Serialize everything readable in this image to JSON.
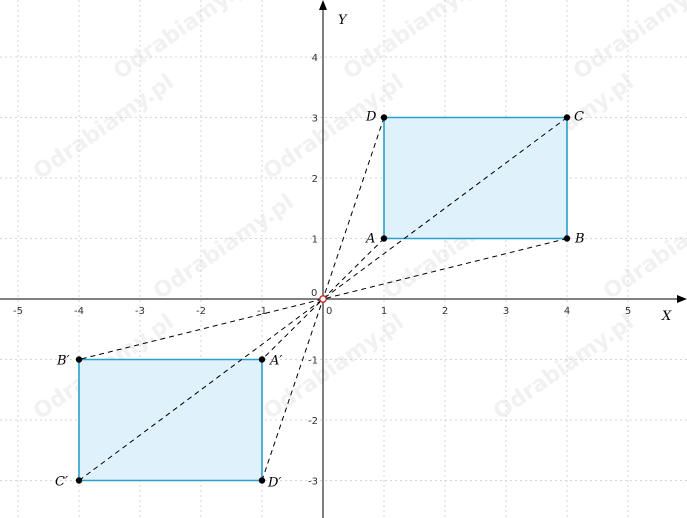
{
  "axes": {
    "x_label": "X",
    "y_label": "Y",
    "x_ticks": [
      "-5",
      "-4",
      "-3",
      "-2",
      "-1",
      "0",
      "1",
      "2",
      "3",
      "4",
      "5"
    ],
    "y_ticks": [
      "-3",
      "-2",
      "-1",
      "1",
      "2",
      "3",
      "4"
    ],
    "origin_label": "0"
  },
  "points": [
    {
      "name": "A",
      "label": "A",
      "x": 1,
      "y": 1
    },
    {
      "name": "B",
      "label": "B",
      "x": 4,
      "y": 1
    },
    {
      "name": "C",
      "label": "C",
      "x": 4,
      "y": 3
    },
    {
      "name": "D",
      "label": "D",
      "x": 1,
      "y": 3
    },
    {
      "name": "A2",
      "label": "A′",
      "x": -1,
      "y": -1
    },
    {
      "name": "B2",
      "label": "B′",
      "x": -4,
      "y": -1
    },
    {
      "name": "C2",
      "label": "C′",
      "x": -4,
      "y": -3
    },
    {
      "name": "D2",
      "label": "D′",
      "x": -1,
      "y": -3
    }
  ],
  "rectangles": [
    {
      "name": "ABCD",
      "vertices": [
        "A",
        "B",
        "C",
        "D"
      ]
    },
    {
      "name": "A'B'C'D'",
      "vertices": [
        "A2",
        "B2",
        "C2",
        "D2"
      ]
    }
  ],
  "rays": [
    {
      "from": "D",
      "to": "D2"
    },
    {
      "from": "C",
      "to": "C2"
    },
    {
      "from": "A",
      "to": "A2"
    },
    {
      "from": "B",
      "to": "B2"
    }
  ],
  "center": {
    "x": 0,
    "y": 0
  },
  "colors": {
    "fill": "#dff1fb",
    "stroke": "#2aa0cc",
    "center": "#cc2222"
  },
  "watermark": "Odrabiamy.pl"
}
